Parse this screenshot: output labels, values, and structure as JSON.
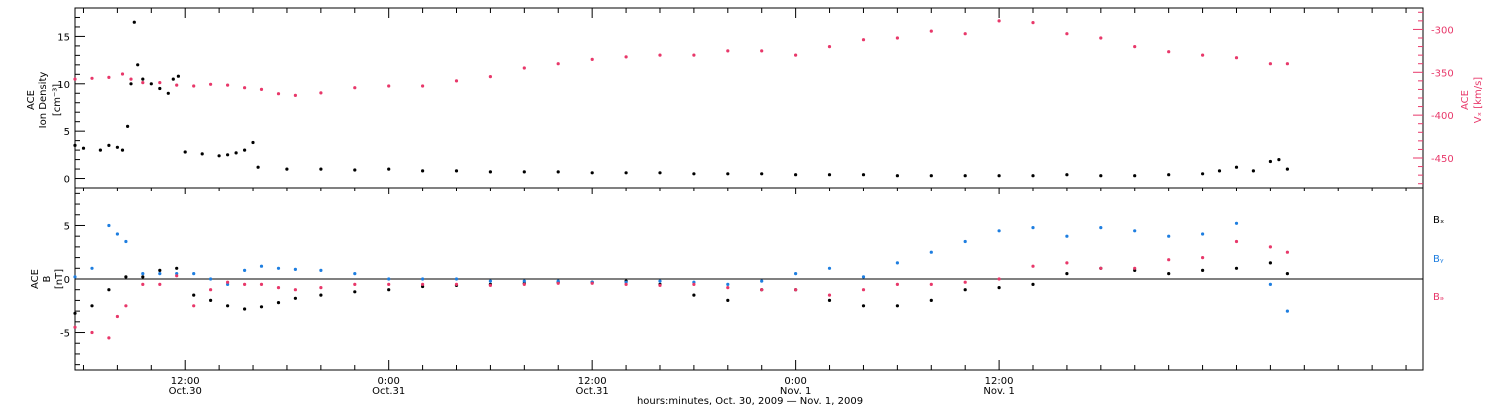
{
  "chart_data": [
    {
      "type": "scatter",
      "ylim_left": [
        -1,
        18
      ],
      "ylim_right": [
        -485,
        -275
      ],
      "y_ticks_left": [
        0,
        5,
        10,
        15
      ],
      "y_ticks_right": [
        -300,
        -350,
        -400,
        -450
      ],
      "left_axis_label": [
        "ACE",
        "Ion Density",
        "[cm⁻³]"
      ],
      "right_axis_label": [
        "ACE",
        "Vₓ [km/s]"
      ],
      "right_axis_color": "#e8386a",
      "series": [
        {
          "axis": "left",
          "color": "#000000",
          "x": [
            5.5,
            6.0,
            7.0,
            7.5,
            8.0,
            8.3,
            8.6,
            8.8,
            9.0,
            9.2,
            9.5,
            10.0,
            10.5,
            11.0,
            11.3,
            11.6,
            12.0,
            13.0,
            14.0,
            14.5,
            15.0,
            15.5,
            16.0,
            16.3,
            18,
            20,
            22,
            24,
            26,
            28,
            30,
            32,
            34,
            36,
            38,
            40,
            42,
            44,
            46,
            48,
            50,
            52,
            54,
            56,
            58,
            60,
            62,
            64,
            66,
            68,
            70,
            72,
            73,
            74,
            75,
            76,
            76.5,
            77
          ],
          "y": [
            3.5,
            3.2,
            3.0,
            3.5,
            3.3,
            3.0,
            5.5,
            10.0,
            16.5,
            12.0,
            10.5,
            10.0,
            9.5,
            9.0,
            10.5,
            10.8,
            2.8,
            2.6,
            2.4,
            2.5,
            2.7,
            3.0,
            3.8,
            1.2,
            1.0,
            1.0,
            0.9,
            1.0,
            0.8,
            0.8,
            0.7,
            0.7,
            0.7,
            0.6,
            0.6,
            0.6,
            0.5,
            0.5,
            0.5,
            0.4,
            0.4,
            0.4,
            0.3,
            0.3,
            0.3,
            0.3,
            0.3,
            0.4,
            0.3,
            0.3,
            0.4,
            0.5,
            0.8,
            1.2,
            0.8,
            1.8,
            2.0,
            1.0
          ]
        },
        {
          "axis": "right",
          "color": "#e8386a",
          "x": [
            5.5,
            6.5,
            7.5,
            8.3,
            8.8,
            9.5,
            10.5,
            11.5,
            12.5,
            13.5,
            14.5,
            15.5,
            16.5,
            17.5,
            18.5,
            20,
            22,
            24,
            26,
            28,
            30,
            32,
            34,
            36,
            38,
            40,
            42,
            44,
            46,
            48,
            50,
            52,
            54,
            56,
            58,
            60,
            62,
            64,
            66,
            68,
            70,
            72,
            74,
            76,
            77
          ],
          "y": [
            -358,
            -357,
            -356,
            -352,
            -358,
            -362,
            -362,
            -365,
            -366,
            -364,
            -365,
            -368,
            -370,
            -375,
            -377,
            -374,
            -368,
            -366,
            -366,
            -360,
            -355,
            -345,
            -340,
            -335,
            -332,
            -330,
            -330,
            -325,
            -325,
            -330,
            -320,
            -312,
            -310,
            -302,
            -305,
            -290,
            -292,
            -305,
            -310,
            -320,
            -326,
            -330,
            -333,
            -340,
            -340
          ]
        }
      ]
    },
    {
      "type": "scatter",
      "ylim": [
        -8.5,
        8.5
      ],
      "y_ticks": [
        -5,
        0,
        5
      ],
      "axis_label": [
        "ACE",
        "B",
        "[nT]"
      ],
      "series": [
        {
          "name": "Bx",
          "color": "#000000",
          "x": [
            5.5,
            6.5,
            7.5,
            8.5,
            9.5,
            10.5,
            11.5,
            12.5,
            13.5,
            14.5,
            15.5,
            16.5,
            17.5,
            18.5,
            20,
            22,
            24,
            26,
            28,
            30,
            32,
            34,
            36,
            38,
            40,
            42,
            44,
            46,
            48,
            50,
            52,
            54,
            56,
            58,
            60,
            62,
            64,
            66,
            68,
            70,
            72,
            74,
            76,
            77
          ],
          "y": [
            -3.2,
            -2.5,
            -1.0,
            0.2,
            0.2,
            0.8,
            1.0,
            -1.5,
            -2.0,
            -2.5,
            -2.8,
            -2.6,
            -2.2,
            -1.8,
            -1.5,
            -1.2,
            -1.0,
            -0.7,
            -0.6,
            -0.5,
            -0.4,
            -0.3,
            -0.3,
            -0.2,
            -0.5,
            -1.5,
            -2.0,
            -1.0,
            -1.0,
            -2.0,
            -2.5,
            -2.5,
            -2.0,
            -1.0,
            -0.8,
            -0.5,
            0.5,
            1.0,
            0.8,
            0.5,
            0.8,
            1.0,
            1.5,
            0.5
          ]
        },
        {
          "name": "By",
          "color": "#1e7ee0",
          "x": [
            5.5,
            6.5,
            7.5,
            8.0,
            8.5,
            9.5,
            10.5,
            11.5,
            12.5,
            13.5,
            14.5,
            15.5,
            16.5,
            17.5,
            18.5,
            20,
            22,
            24,
            26,
            28,
            30,
            32,
            34,
            36,
            38,
            40,
            42,
            44,
            46,
            48,
            50,
            52,
            54,
            56,
            58,
            60,
            62,
            64,
            66,
            68,
            70,
            72,
            74,
            76,
            77
          ],
          "y": [
            0.2,
            1.0,
            5.0,
            4.2,
            3.5,
            0.5,
            0.5,
            0.5,
            0.5,
            0.0,
            -0.5,
            0.8,
            1.2,
            1.0,
            0.9,
            0.8,
            0.5,
            0.0,
            0.0,
            0.0,
            -0.2,
            -0.2,
            -0.2,
            -0.3,
            -0.3,
            -0.2,
            -0.3,
            -0.5,
            -0.2,
            0.5,
            1.0,
            0.2,
            1.5,
            2.5,
            3.5,
            4.5,
            4.8,
            4.0,
            4.8,
            4.5,
            4.0,
            4.2,
            5.2,
            -0.5,
            -3.0
          ]
        },
        {
          "name": "Bz",
          "color": "#e8386a",
          "x": [
            5.5,
            6.5,
            7.5,
            8.0,
            8.5,
            9.5,
            10.5,
            11.5,
            12.5,
            13.5,
            14.5,
            15.5,
            16.5,
            17.5,
            18.5,
            20,
            22,
            24,
            26,
            28,
            30,
            32,
            34,
            36,
            38,
            40,
            42,
            44,
            46,
            48,
            50,
            52,
            54,
            56,
            58,
            60,
            62,
            64,
            66,
            68,
            70,
            72,
            74,
            76,
            77
          ],
          "y": [
            -4.5,
            -5.0,
            -5.5,
            -3.5,
            -2.5,
            -0.5,
            -0.5,
            0.3,
            -2.5,
            -1.0,
            -0.3,
            -0.5,
            -0.5,
            -0.8,
            -1.0,
            -0.8,
            -0.5,
            -0.5,
            -0.5,
            -0.5,
            -0.6,
            -0.5,
            -0.4,
            -0.4,
            -0.5,
            -0.6,
            -0.5,
            -0.8,
            -1.0,
            -1.0,
            -1.5,
            -1.0,
            -0.5,
            -0.5,
            -0.3,
            0.0,
            1.2,
            1.5,
            1.0,
            1.0,
            1.8,
            2.0,
            3.5,
            3.0,
            2.5
          ]
        }
      ]
    }
  ],
  "time_axis": {
    "xlim": [
      5.5,
      85
    ],
    "major_ticks": [
      {
        "x": 12,
        "time": "12:00",
        "date": "Oct.30"
      },
      {
        "x": 24,
        "time": "0:00",
        "date": "Oct.31"
      },
      {
        "x": 36,
        "time": "12:00",
        "date": "Oct.31"
      },
      {
        "x": 48,
        "time": "0:00",
        "date": "Nov. 1"
      },
      {
        "x": 60,
        "time": "12:00",
        "date": "Nov. 1"
      }
    ],
    "minor_tick_hours": 2,
    "title": "hours:minutes, Oct. 30, 2009 — Nov.  1, 2009"
  },
  "legend": [
    {
      "label": "Bₓ",
      "color": "#000000"
    },
    {
      "label": "Bᵧ",
      "color": "#1e7ee0"
    },
    {
      "label": "Bₔ",
      "color": "#e8386a"
    }
  ]
}
